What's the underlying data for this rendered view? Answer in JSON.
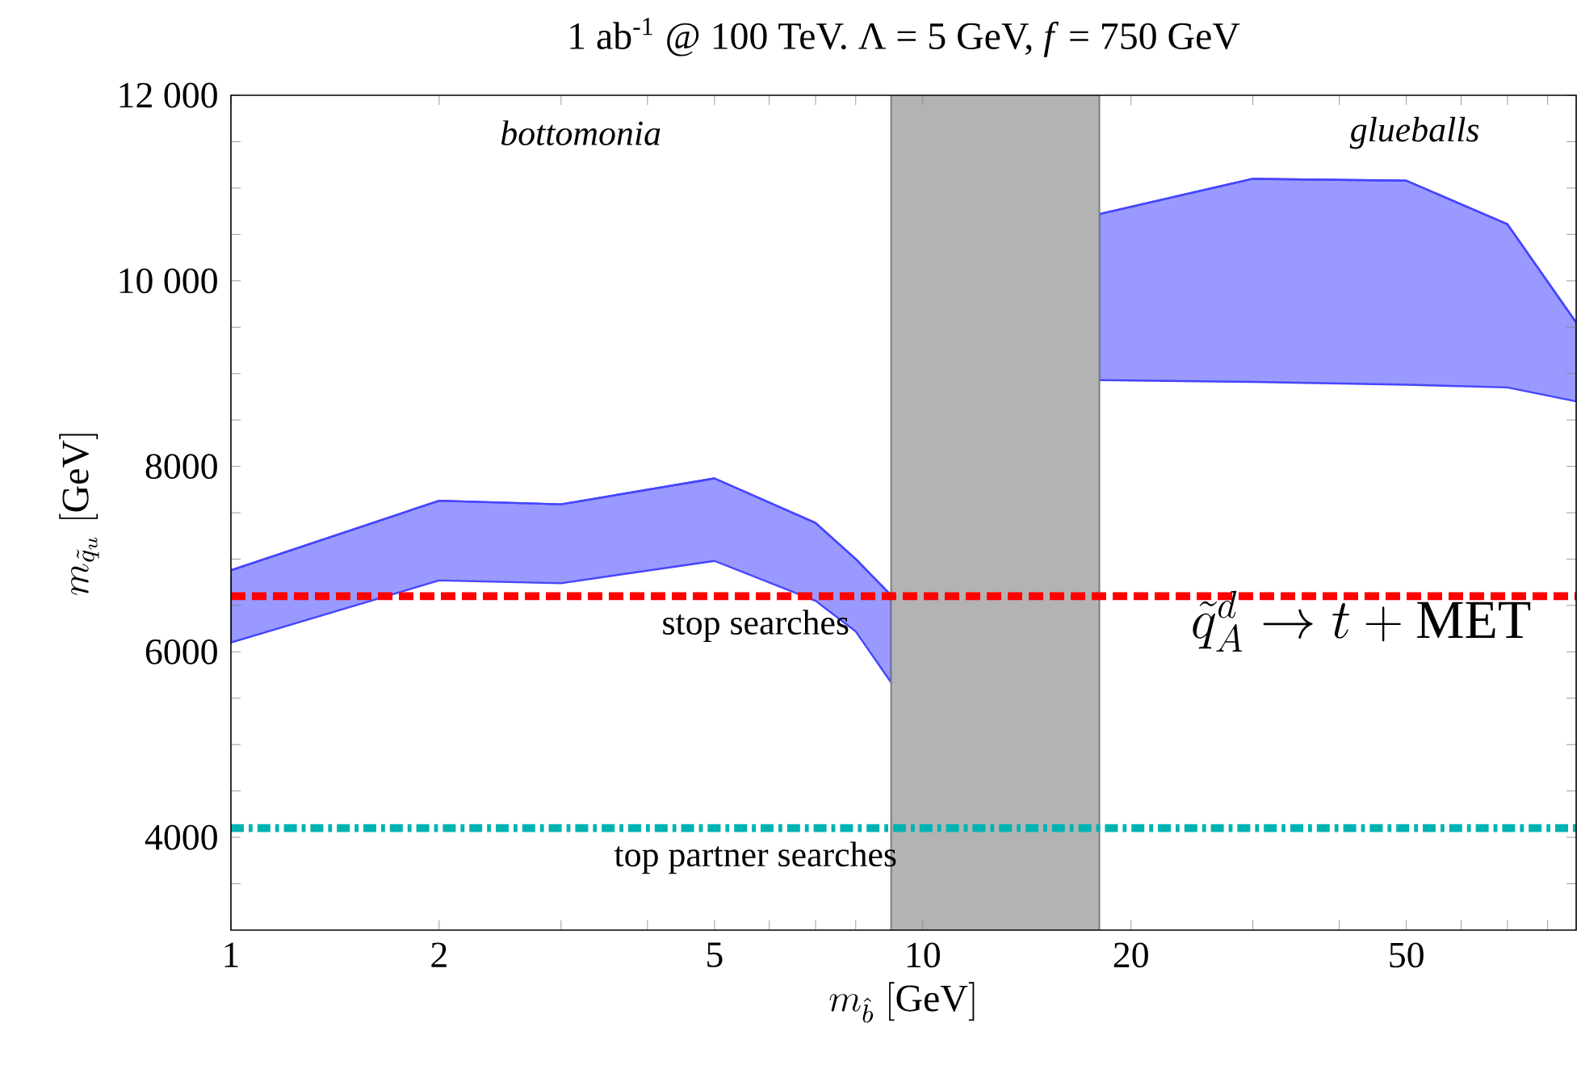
{
  "chart_data": {
    "type": "line",
    "title": "1 ab$^{-1}$ @ 100 TeV. Λ = 5 GeV, *f* = 750 GeV",
    "xlabel": "m_{\\hat{b}}\\ [\\mathrm{GeV}]",
    "ylabel": "m_{\\tilde{q}_u}\\ [\\mathrm{GeV}]",
    "log": "x",
    "xlim": [
      1,
      88
    ],
    "ylim": [
      3000,
      12000
    ],
    "xticks": [
      1,
      2,
      {
        "value": 3,
        "label": null
      },
      {
        "value": 4,
        "label": null
      },
      5,
      {
        "value": 6,
        "label": null
      },
      {
        "value": 7,
        "label": null
      },
      {
        "value": 8,
        "label": null
      },
      {
        "value": 9,
        "label": null
      },
      10,
      20,
      {
        "value": 30,
        "label": null
      },
      {
        "value": 40,
        "label": null
      },
      50,
      {
        "value": 60,
        "label": null
      },
      {
        "value": 70,
        "label": null
      },
      {
        "value": 80,
        "label": null
      }
    ],
    "yticks": [
      {
        "value": 3500,
        "label": null
      },
      4000,
      {
        "value": 4500,
        "label": null
      },
      {
        "value": 5000,
        "label": null
      },
      {
        "value": 5500,
        "label": null
      },
      6000,
      {
        "value": 6500,
        "label": null
      },
      {
        "value": 7000,
        "label": null
      },
      {
        "value": 7500,
        "label": null
      },
      8000,
      {
        "value": 8500,
        "label": null
      },
      {
        "value": 9000,
        "label": null
      },
      {
        "value": 9500,
        "label": null
      },
      {
        "value": 10000,
        "label": "10 000"
      },
      {
        "value": 10500,
        "label": null
      },
      {
        "value": 11000,
        "label": null
      },
      {
        "value": 11500,
        "label": null
      },
      {
        "value": 12000,
        "label": "12 000"
      }
    ],
    "series": [
      {
        "color": "#4545ff",
        "x": [
          1,
          2,
          3,
          5,
          7,
          8,
          9
        ],
        "values": [
          6880,
          7630,
          7590,
          7870,
          7390,
          7000,
          6610
        ],
        "upper": [
          6880,
          7630,
          7590,
          7870,
          7390,
          7000,
          6610
        ],
        "lower": [
          6100,
          6770,
          6740,
          6980,
          6550,
          6220,
          5670
        ]
      },
      {
        "color": "#4545ff",
        "x": [
          18,
          30,
          50,
          70,
          88
        ],
        "values": [
          10720,
          11100,
          11080,
          10610,
          9550
        ],
        "upper": [
          10720,
          11100,
          11080,
          10610,
          9550
        ],
        "lower": [
          8930,
          8910,
          8880,
          8850,
          8700
        ]
      }
    ],
    "bands": [
      {
        "axis": "x",
        "from": 9,
        "to": 18,
        "color": "#b3b3b3"
      }
    ],
    "ref_lines": [
      {
        "axis": "y",
        "value": 6600,
        "label": "stop searches",
        "color": "#ff0000",
        "line_style": "dashed"
      },
      {
        "axis": "y",
        "value": 4100,
        "label": "top partner searches",
        "color": "#00b3b3",
        "line_style": "dashdot"
      }
    ],
    "annotations": [
      "bottomonia",
      "glueballs",
      "\\tilde{q}_A^d \\to t + \\mathrm{MET}"
    ]
  }
}
